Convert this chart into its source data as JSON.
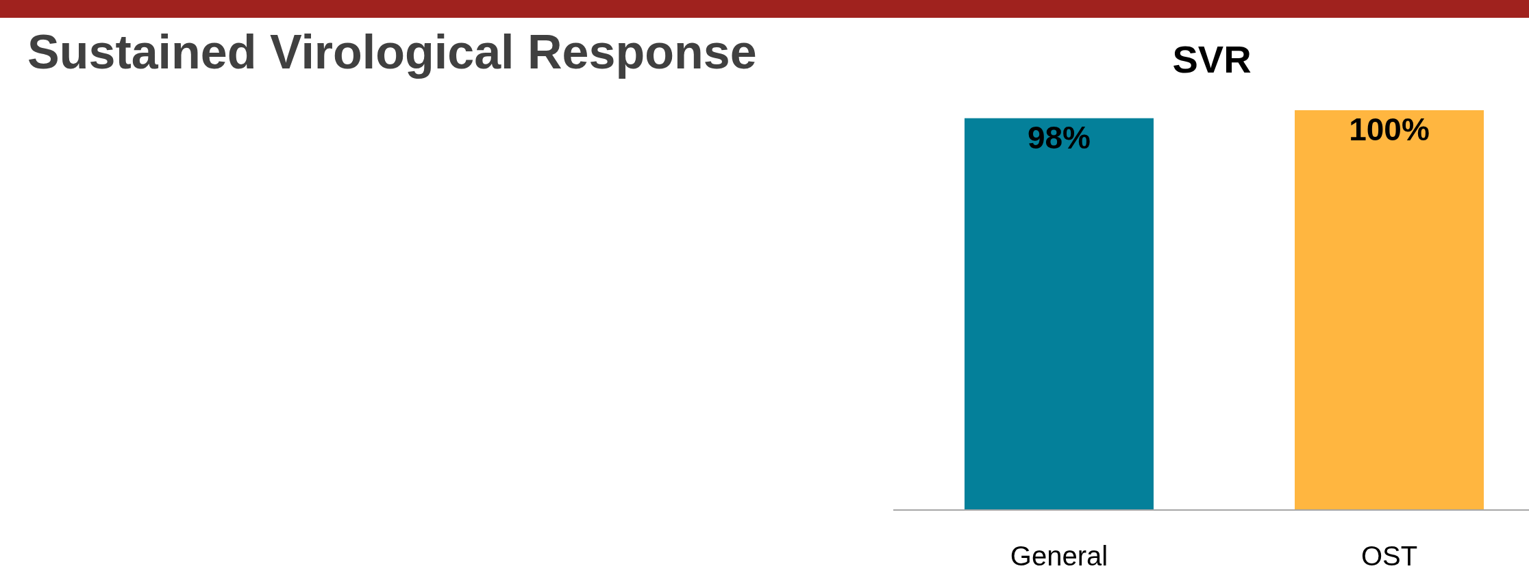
{
  "chart_data": {
    "type": "bar",
    "title": "SVR",
    "subtitle": "Sustained Virological Response",
    "categories": [
      "General",
      "OST"
    ],
    "values": [
      98,
      100
    ],
    "colors": [
      "#04809a",
      "#ffb640"
    ],
    "value_labels": [
      "98%",
      "100%"
    ]
  }
}
